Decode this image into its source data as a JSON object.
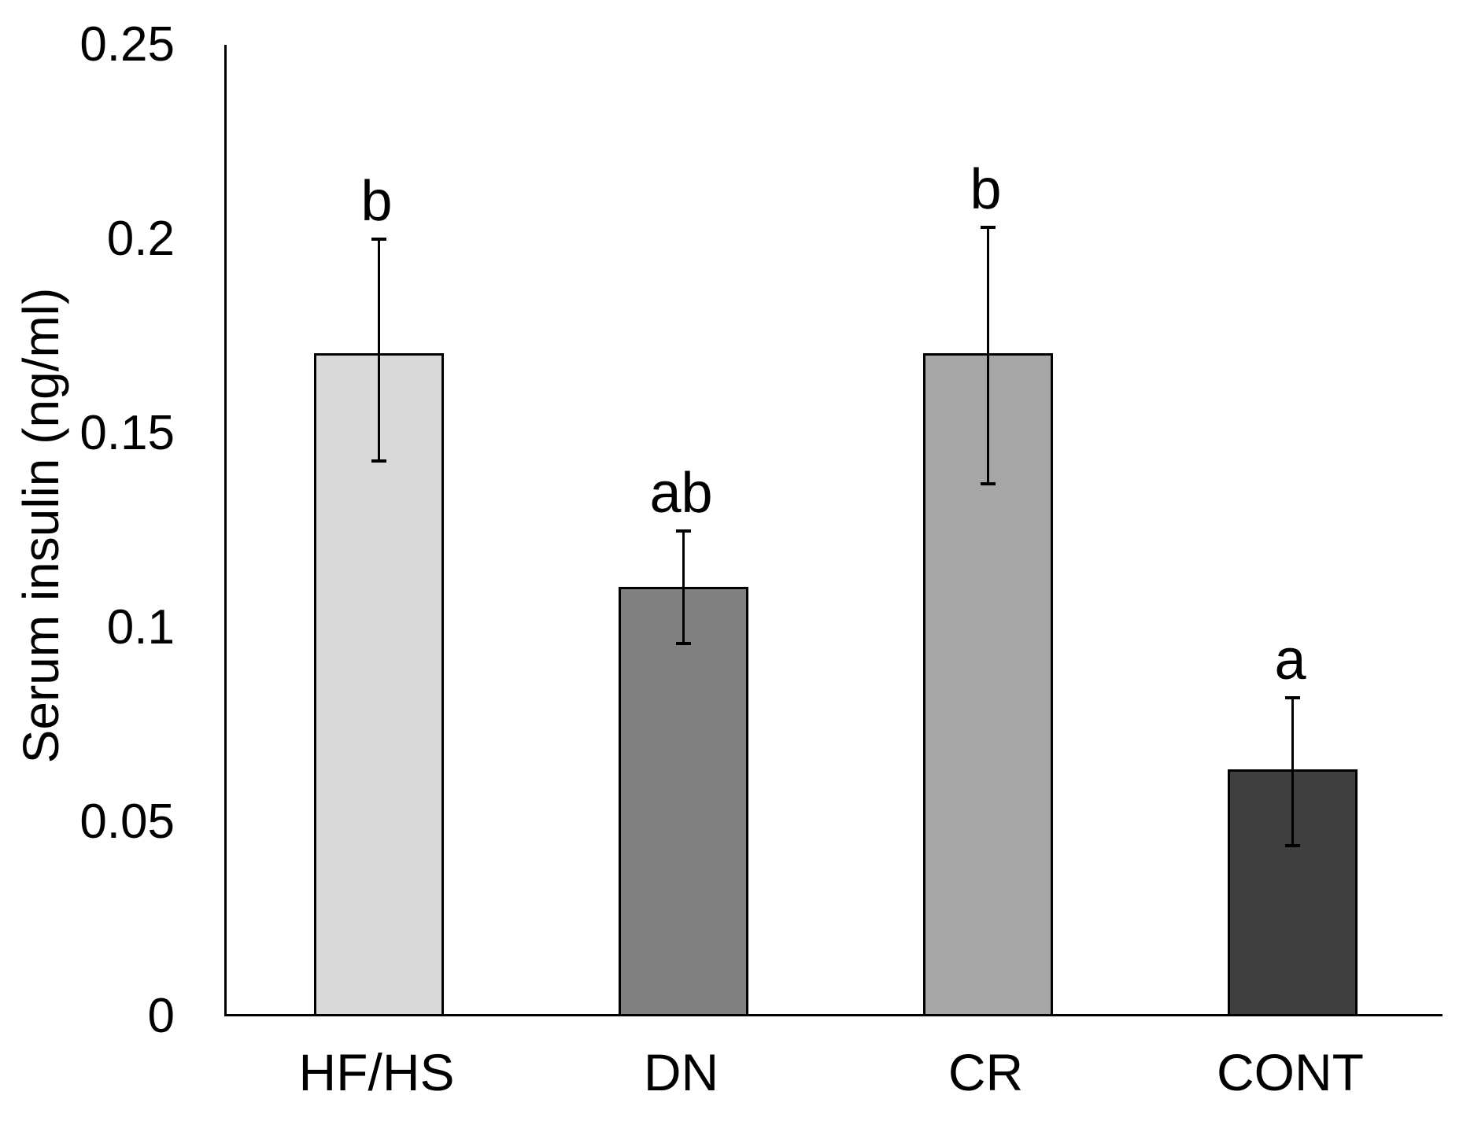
{
  "chart_data": {
    "type": "bar",
    "title": "",
    "categories": [
      "HF/HS",
      "DN",
      "CR",
      "CONT"
    ],
    "values": [
      0.17,
      0.11,
      0.17,
      0.063
    ],
    "error_upper": [
      0.2,
      0.125,
      0.203,
      0.082
    ],
    "error_lower": [
      0.143,
      0.096,
      0.137,
      0.044
    ],
    "sig_letters": [
      "b",
      "ab",
      "b",
      "a"
    ],
    "bar_colors": [
      "#d9d9d9",
      "#808080",
      "#a6a6a6",
      "#3f3f3f"
    ],
    "bar_border_color": "#000000",
    "axis_color": "#000000",
    "background_color": "#ffffff",
    "xlabel": "",
    "ylabel": "Serum insulin (ng/ml)",
    "ylim": [
      0,
      0.25
    ],
    "yticks": [
      0,
      0.05,
      0.1,
      0.15,
      0.2,
      0.25
    ],
    "ytick_labels": [
      "0",
      "0.05",
      "0.1",
      "0.15",
      "0.2",
      "0.25"
    ],
    "grid": false,
    "legend": false
  }
}
